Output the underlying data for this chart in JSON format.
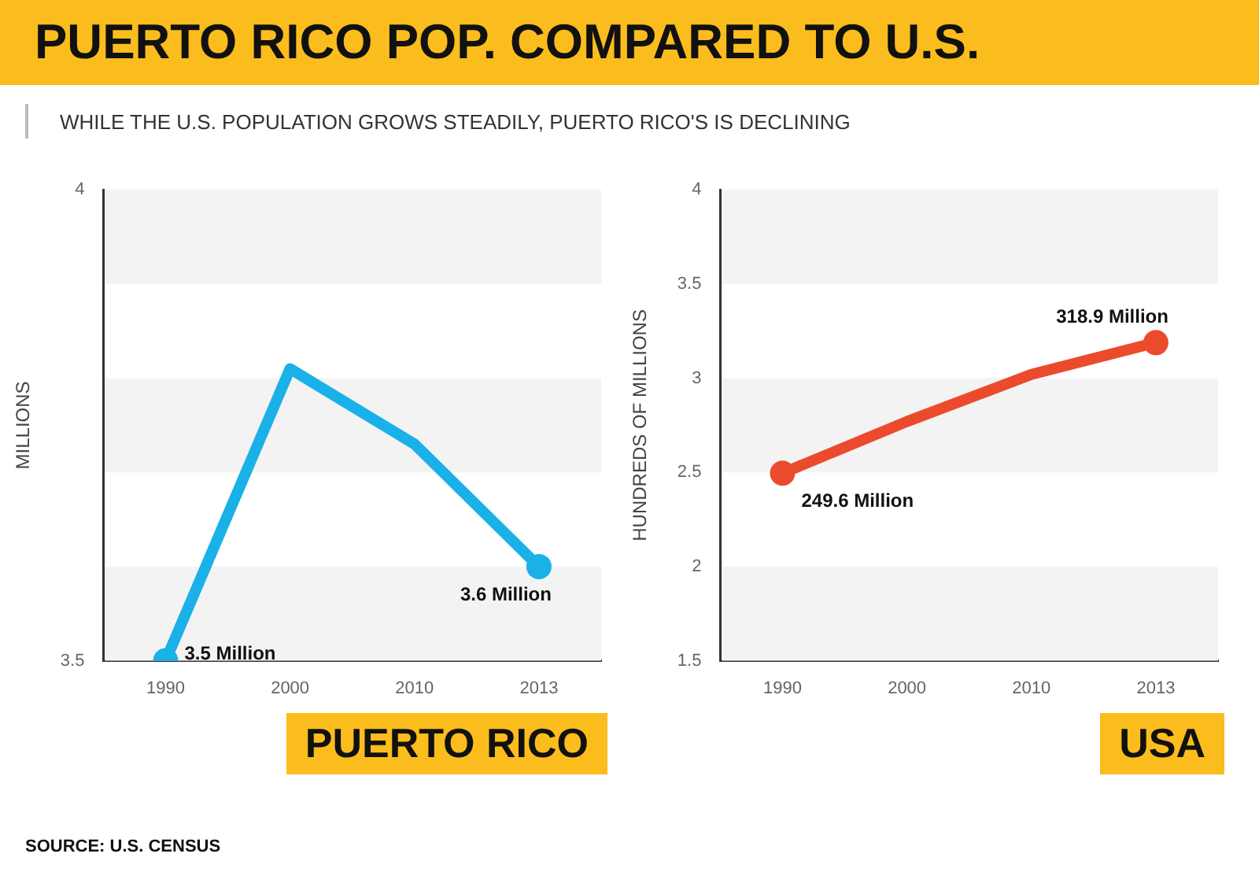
{
  "chart_data": [
    {
      "type": "other",
      "title": "PUERTO RICO POP. COMPARED TO U.S.",
      "subtitle": "WHILE THE U.S. POPULATION GROWS STEADILY, PUERTO RICO'S IS DECLINING",
      "annotations": [
        "SOURCE: U.S. CENSUS"
      ]
    },
    {
      "type": "line",
      "title": "PUERTO RICO",
      "ylabel": "MILLIONS",
      "categories": [
        "1990",
        "2000",
        "2010",
        "2013"
      ],
      "series": [
        {
          "color": "#1ab0e8",
          "values": [
            3.5,
            3.81,
            3.73,
            3.6
          ]
        }
      ],
      "annotations": [
        {
          "text": "3.5 Million",
          "x": "1990",
          "y": 3.5
        },
        {
          "text": "3.6 Million",
          "x": "2013",
          "y": 3.6
        }
      ],
      "ylim": [
        3.5,
        4
      ],
      "yticks": [
        3.5,
        4
      ],
      "marker": "circle",
      "grid": false,
      "legend": false,
      "bands": [
        {
          "axis": "y",
          "from": 3.9,
          "to": 4,
          "color": "#f3f3f3"
        },
        {
          "axis": "y",
          "from": 3.7,
          "to": 3.8,
          "color": "#f3f3f3"
        },
        {
          "axis": "y",
          "from": 3.5,
          "to": 3.6,
          "color": "#f3f3f3"
        }
      ]
    },
    {
      "type": "line",
      "title": "USA",
      "ylabel": "HUNDREDS OF MILLIONS",
      "categories": [
        "1990",
        "2000",
        "2010",
        "2013"
      ],
      "series": [
        {
          "color": "#ec4a2c",
          "values": [
            2.496,
            2.77,
            3.02,
            3.189
          ]
        }
      ],
      "annotations": [
        {
          "text": "249.6 Million",
          "x": "1990",
          "y": 2.496
        },
        {
          "text": "318.9 Million",
          "x": "2013",
          "y": 3.189
        }
      ],
      "ylim": [
        1.5,
        4
      ],
      "yticks": [
        1.5,
        2,
        2.5,
        3,
        3.5,
        4
      ],
      "marker": "circle",
      "grid": false,
      "legend": false,
      "bands": [
        {
          "axis": "y",
          "from": 3.5,
          "to": 4,
          "color": "#f3f3f3"
        },
        {
          "axis": "y",
          "from": 2.5,
          "to": 3,
          "color": "#f3f3f3"
        },
        {
          "axis": "y",
          "from": 1.5,
          "to": 2,
          "color": "#f3f3f3"
        }
      ]
    }
  ]
}
